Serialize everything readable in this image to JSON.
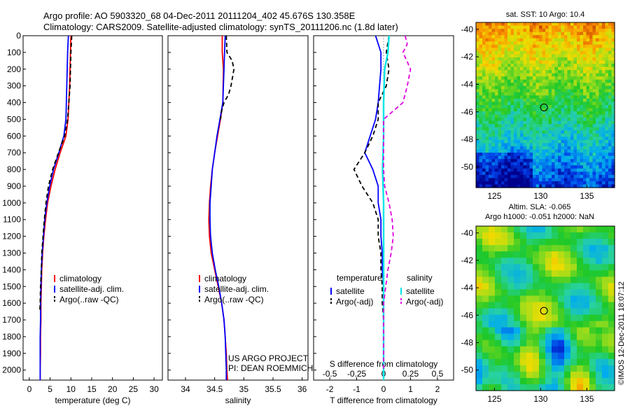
{
  "title_line1": "Argo profile: AO 5903320_68 04-Dec-2011 20111204_402 45.676S 130.358E",
  "title_line2": "Climatology: CARS2009. Satellite-adjusted climatology: synTS_20111206.nc (1.8d later)",
  "depth_ticks": [
    "0",
    "100",
    "200",
    "300",
    "400",
    "500",
    "600",
    "700",
    "800",
    "900",
    "1000",
    "1100",
    "1200",
    "1300",
    "1400",
    "1500",
    "1600",
    "1700",
    "1800",
    "1900",
    "2000"
  ],
  "colors": {
    "climatology": "#ff0000",
    "satellite": "#0000ff",
    "argo": "#000000",
    "sal_sat": "#00e5e5",
    "sal_argo": "#e000e0"
  },
  "chart_data": [
    {
      "type": "line",
      "xlabel": "temperature (deg C)",
      "xlim": [
        -1.5,
        32
      ],
      "ylim": [
        0,
        2060
      ],
      "xticks": [
        "0",
        "5",
        "10",
        "15",
        "20",
        "25",
        "30"
      ],
      "legend": [
        "climatology",
        "satellite-adj. clim.",
        "Argo(..raw -QC)"
      ],
      "legend_position": "bottom-center",
      "series": [
        {
          "name": "climatology",
          "depth": [
            0,
            100,
            300,
            500,
            600,
            700,
            800,
            900,
            1000,
            1100,
            1200,
            1300,
            1400,
            1500,
            1600,
            1700,
            1800,
            1900,
            2000,
            2060
          ],
          "values": [
            10.0,
            9.9,
            9.7,
            9.3,
            8.8,
            7.4,
            6.2,
            5.2,
            4.4,
            3.9,
            3.5,
            3.2,
            3.0,
            2.9,
            2.8,
            2.8,
            2.7,
            2.7,
            2.6,
            2.6
          ]
        },
        {
          "name": "satellite-adj. clim.",
          "depth": [
            0,
            100,
            300,
            500,
            600,
            700,
            800,
            900,
            1000,
            1100,
            1200,
            1300,
            1400,
            1500,
            1600,
            1700,
            1800,
            1900,
            2000,
            2060
          ],
          "values": [
            9.4,
            9.2,
            9.0,
            8.8,
            8.3,
            7.1,
            5.8,
            4.9,
            4.2,
            3.7,
            3.4,
            3.1,
            2.9,
            2.8,
            2.7,
            2.7,
            2.6,
            2.6,
            2.6,
            2.6
          ]
        },
        {
          "name": "Argo(..raw -QC)",
          "depth": [
            0,
            100,
            200,
            300,
            400,
            500,
            600,
            700,
            800,
            900,
            1000,
            1100,
            1200,
            1300,
            1400,
            1500,
            1600,
            1650
          ],
          "values": [
            10.2,
            10.0,
            9.9,
            9.8,
            9.5,
            9.2,
            8.5,
            7.0,
            5.6,
            4.6,
            4.0,
            3.6,
            3.3,
            3.0,
            2.9,
            2.7,
            2.6,
            2.5
          ]
        }
      ]
    },
    {
      "type": "line",
      "xlabel": "salinity",
      "xlim": [
        33.7,
        36.1
      ],
      "ylim": [
        0,
        2060
      ],
      "xticks": [
        "34",
        "34.5",
        "35",
        "35.5",
        "36"
      ],
      "legend": [
        "climatology",
        "satellite-adj. clim.",
        "Argo(..raw -QC)"
      ],
      "legend_position": "bottom-center",
      "annotation": [
        "US ARGO PROJECT",
        "PI: DEAN ROEMMICH"
      ],
      "series": [
        {
          "name": "climatology",
          "depth": [
            0,
            100,
            200,
            400,
            500,
            600,
            700,
            800,
            900,
            1000,
            1100,
            1200,
            1300,
            1400,
            1500,
            1600,
            1700,
            1800,
            1900,
            2000,
            2060
          ],
          "values": [
            34.63,
            34.63,
            34.65,
            34.64,
            34.6,
            34.55,
            34.5,
            34.46,
            34.43,
            34.41,
            34.4,
            34.41,
            34.44,
            34.5,
            34.56,
            34.62,
            34.66,
            34.68,
            34.7,
            34.71,
            34.72
          ]
        },
        {
          "name": "satellite-adj. clim.",
          "depth": [
            0,
            100,
            200,
            400,
            500,
            600,
            700,
            800,
            900,
            1000,
            1100,
            1200,
            1300,
            1400,
            1500,
            1600,
            1700,
            1800,
            1900,
            2000,
            2060
          ],
          "values": [
            34.68,
            34.67,
            34.66,
            34.64,
            34.59,
            34.54,
            34.5,
            34.46,
            34.44,
            34.42,
            34.42,
            34.43,
            34.46,
            34.51,
            34.57,
            34.62,
            34.66,
            34.68,
            34.69,
            34.7,
            34.7
          ]
        },
        {
          "name": "Argo(..raw -QC)",
          "depth": [
            0,
            100,
            150,
            200,
            300,
            350,
            400,
            450,
            500
          ],
          "values": [
            34.7,
            34.71,
            34.8,
            34.83,
            34.78,
            34.74,
            34.66,
            34.62,
            34.6
          ]
        }
      ]
    },
    {
      "type": "line",
      "xlabel": "T difference from climatology",
      "xlabel_top": "S difference from climatology",
      "xlim": [
        -2.6,
        2.6
      ],
      "ylim": [
        0,
        2060
      ],
      "xticks": [
        "-2",
        "-1",
        "0",
        "1",
        "2"
      ],
      "xticks_top": [
        "-0.5",
        "-0.25",
        "0",
        "0.25",
        "0.5"
      ],
      "legend_temperature_title": "temperature",
      "legend_salinity_title": "salinity",
      "legend": [
        "satellite",
        "Argo(-adj)",
        "satellite",
        "Argo(-adj)"
      ],
      "legend_position": "bottom-center",
      "series": [
        {
          "name": "temperature satellite",
          "depth": [
            0,
            100,
            200,
            300,
            400,
            500,
            600,
            700,
            800,
            900,
            1000,
            1100,
            1200,
            1300,
            1400,
            1500,
            1600,
            1700,
            1800,
            1900,
            2000,
            2060
          ],
          "values": [
            -0.3,
            -0.1,
            -0.1,
            -0.15,
            -0.2,
            -0.3,
            -0.5,
            -0.7,
            -0.4,
            -0.2,
            -0.2,
            -0.1,
            -0.1,
            -0.05,
            -0.05,
            0,
            0,
            0,
            0,
            0,
            0,
            0
          ]
        },
        {
          "name": "temperature Argo(-adj)",
          "depth": [
            0,
            100,
            200,
            300,
            400,
            500,
            600,
            700,
            800,
            900,
            1000,
            1100,
            1200,
            1300,
            1400,
            1500,
            1600,
            1700,
            1800,
            1900,
            2000
          ],
          "values": [
            0.2,
            0.1,
            0.2,
            0.1,
            -0.2,
            -0.2,
            -0.4,
            -0.7,
            -1.1,
            -0.8,
            -0.4,
            -0.2,
            -0.2,
            -0.1,
            -0.1,
            -0.05,
            -0.05,
            0,
            0,
            0,
            0
          ]
        },
        {
          "name": "salinity satellite",
          "depth": [
            0,
            100,
            200,
            400,
            600,
            800,
            1000,
            1200,
            1400,
            1600,
            1800,
            2000,
            2060
          ],
          "values": [
            0.05,
            0.04,
            0.01,
            0,
            0,
            -0.01,
            0,
            0,
            0,
            0,
            0,
            0,
            0
          ]
        },
        {
          "name": "salinity Argo(-adj)",
          "depth": [
            0,
            50,
            100,
            200,
            300,
            400,
            500,
            600,
            700,
            800,
            900,
            1000,
            1100,
            1200,
            1300,
            1400,
            1500,
            1600,
            1700,
            1800,
            1900,
            2000
          ],
          "values": [
            0.2,
            0.22,
            0.18,
            0.25,
            0.22,
            0.18,
            0,
            0,
            0,
            0,
            0.01,
            0.05,
            0.08,
            0.09,
            0.07,
            0.04,
            0.02,
            0,
            0,
            0,
            0,
            0
          ]
        }
      ]
    },
    {
      "type": "heatmap",
      "title": "sat. SST: 10 Argo: 10.4",
      "xlim": [
        123,
        138
      ],
      "ylim": [
        -51.5,
        -39.5
      ],
      "xticks": [
        "125",
        "130",
        "135"
      ],
      "yticks": [
        "-40",
        "-42",
        "-44",
        "-46",
        "-48",
        "-50"
      ],
      "marker": {
        "lon": 130.358,
        "lat": -45.676
      }
    },
    {
      "type": "heatmap",
      "title": [
        "Altim. SLA: -0.065",
        "Argo h1000: -0.051 h2000: NaN"
      ],
      "xlim": [
        123,
        138
      ],
      "ylim": [
        -51.5,
        -39.5
      ],
      "xticks": [
        "125",
        "130",
        "135"
      ],
      "yticks": [
        "-40",
        "-42",
        "-44",
        "-46",
        "-48",
        "-50"
      ],
      "marker": {
        "lon": 130.358,
        "lat": -45.676
      }
    }
  ],
  "watermark": "©IMOS 12-Dec-2011 18:07:12"
}
